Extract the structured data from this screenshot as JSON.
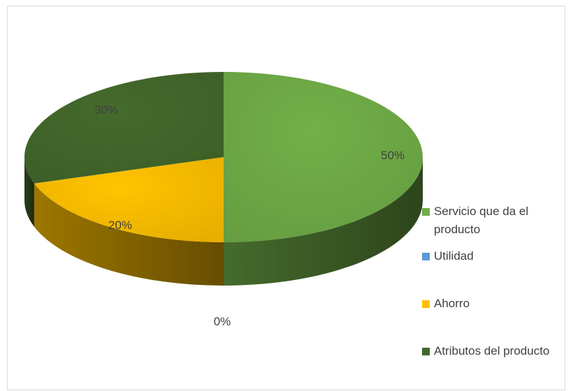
{
  "chart_data": {
    "type": "pie",
    "style": "3d",
    "title": "",
    "categories": [
      "Servicio que da el producto",
      "Utilidad",
      "Ahorro",
      "Atributos del producto"
    ],
    "values": [
      50,
      0,
      20,
      30
    ],
    "labels": [
      "50%",
      "0%",
      "20%",
      "30%"
    ],
    "colors": [
      "#70ad47",
      "#5b9bd5",
      "#ffc000",
      "#43682b"
    ],
    "legend_position": "right"
  }
}
